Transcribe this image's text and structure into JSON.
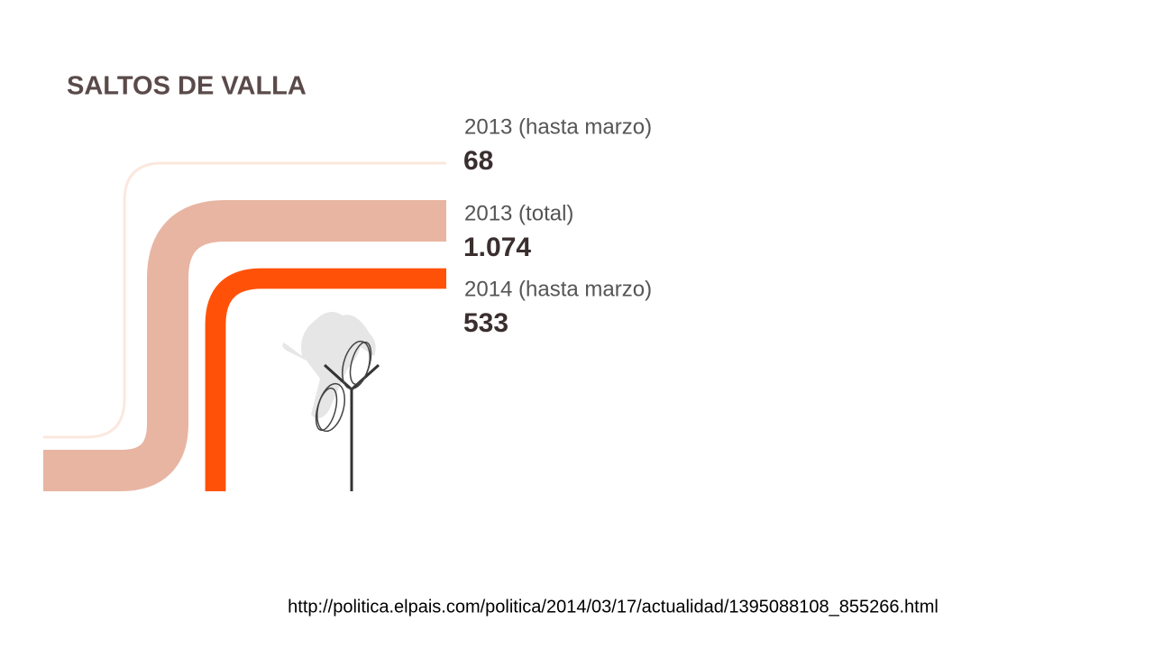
{
  "chart_data": {
    "type": "band",
    "title": "SALTOS DE VALLA",
    "categories": [
      "2013 (hasta marzo)",
      "2013 (total)",
      "2014 (hasta marzo)"
    ],
    "values": [
      68,
      1074,
      533
    ],
    "value_labels": [
      "68",
      "1.074",
      "533"
    ],
    "colors": [
      "#fbe8de",
      "#e8b5a2",
      "#ff5208"
    ],
    "source": "http://politica.elpais.com/politica/2014/03/17/actualidad/1395088108_855266.html"
  }
}
